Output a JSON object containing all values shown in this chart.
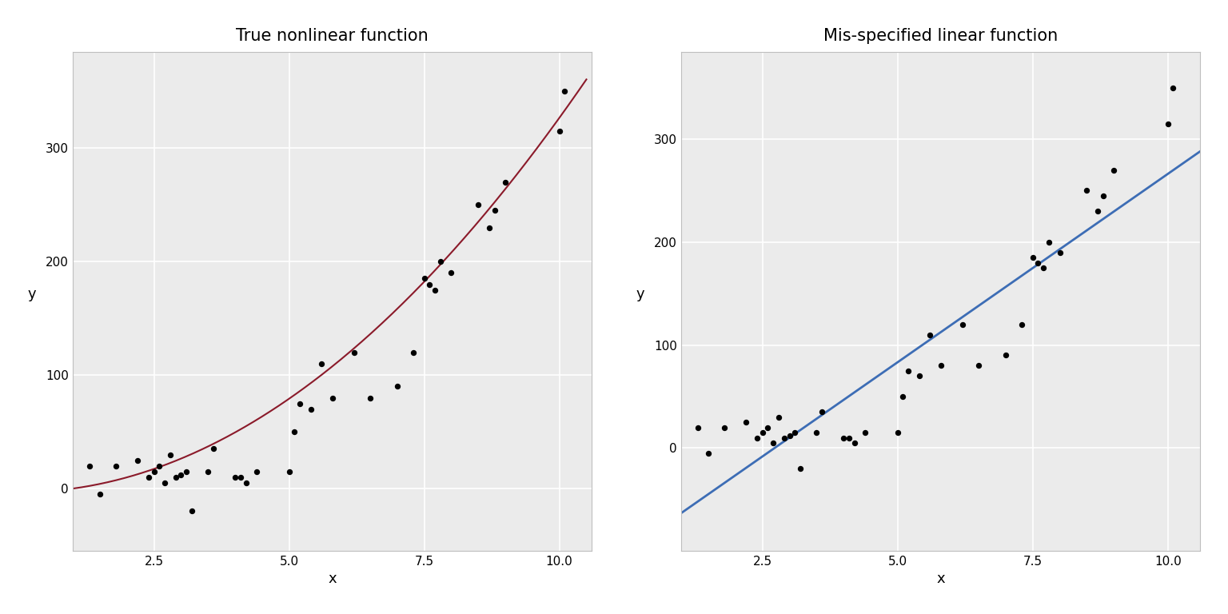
{
  "title_left": "True nonlinear function",
  "title_right": "Mis-specified linear function",
  "xlabel": "x",
  "ylabel": "y",
  "curve_color_left": "#8B1A2A",
  "line_color_right": "#3D6DB5",
  "point_color": "#000000",
  "point_size": 28,
  "background_color": "#FFFFFF",
  "panel_background": "#EBEBEB",
  "grid_color": "#FFFFFF",
  "xlim": [
    1.0,
    10.6
  ],
  "ylim_left": [
    -55,
    385
  ],
  "ylim_right": [
    -100,
    385
  ],
  "x_ticks": [
    2.5,
    5.0,
    7.5,
    10.0
  ],
  "y_ticks": [
    0,
    100,
    200,
    300
  ],
  "x_points": [
    1.3,
    1.5,
    1.8,
    2.2,
    2.4,
    2.5,
    2.6,
    2.7,
    2.8,
    2.9,
    3.0,
    3.1,
    3.2,
    3.5,
    3.6,
    4.0,
    4.1,
    4.2,
    4.4,
    5.0,
    5.1,
    5.2,
    5.4,
    5.6,
    5.8,
    6.2,
    6.5,
    7.0,
    7.3,
    7.5,
    7.6,
    7.7,
    7.8,
    8.0,
    8.5,
    8.7,
    8.8,
    9.0,
    10.0,
    10.1
  ],
  "y_points": [
    20,
    -5,
    20,
    25,
    10,
    15,
    20,
    5,
    30,
    10,
    12,
    15,
    -20,
    15,
    35,
    10,
    10,
    5,
    15,
    15,
    50,
    75,
    70,
    110,
    80,
    120,
    80,
    90,
    120,
    185,
    180,
    175,
    200,
    190,
    250,
    230,
    245,
    270,
    315,
    350
  ],
  "quadratic_a": 3.3,
  "quadratic_b": -3.3,
  "title_fontsize": 15,
  "axis_label_fontsize": 13,
  "tick_fontsize": 11,
  "curve_linewidth": 1.5,
  "line_linewidth": 2.0,
  "border_color": "#BEBEBE"
}
